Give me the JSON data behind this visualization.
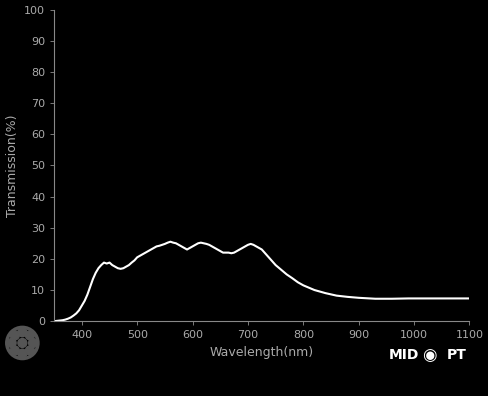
{
  "xlabel": "Wavelength(nm)",
  "ylabel": "Transmission(%)",
  "background_color": "#000000",
  "text_color": "#aaaaaa",
  "line_color": "#ffffff",
  "xlim": [
    350,
    1100
  ],
  "ylim": [
    0,
    100
  ],
  "xticks": [
    400,
    500,
    600,
    700,
    800,
    900,
    1000,
    1100
  ],
  "yticks": [
    0,
    10,
    20,
    30,
    40,
    50,
    60,
    70,
    80,
    90,
    100
  ],
  "wavelengths": [
    350,
    355,
    360,
    365,
    370,
    375,
    380,
    385,
    390,
    395,
    400,
    405,
    410,
    415,
    420,
    425,
    430,
    435,
    440,
    445,
    450,
    455,
    460,
    465,
    470,
    475,
    480,
    485,
    490,
    495,
    500,
    505,
    510,
    515,
    520,
    525,
    530,
    535,
    540,
    545,
    550,
    555,
    560,
    565,
    570,
    575,
    580,
    585,
    590,
    595,
    600,
    605,
    610,
    615,
    620,
    625,
    630,
    635,
    640,
    645,
    650,
    655,
    660,
    665,
    670,
    675,
    680,
    685,
    690,
    695,
    700,
    705,
    710,
    715,
    720,
    725,
    730,
    735,
    740,
    745,
    750,
    760,
    770,
    780,
    790,
    800,
    820,
    840,
    860,
    880,
    900,
    930,
    960,
    990,
    1020,
    1050,
    1070,
    1100
  ],
  "transmission": [
    0,
    0.1,
    0.2,
    0.3,
    0.5,
    0.8,
    1.2,
    1.8,
    2.5,
    3.5,
    5.0,
    6.5,
    8.5,
    11.0,
    13.5,
    15.5,
    17.0,
    18.0,
    18.8,
    18.5,
    18.8,
    18.0,
    17.5,
    17.0,
    16.8,
    17.0,
    17.5,
    18.0,
    18.8,
    19.5,
    20.5,
    21.0,
    21.5,
    22.0,
    22.5,
    23.0,
    23.5,
    24.0,
    24.2,
    24.5,
    24.8,
    25.2,
    25.5,
    25.2,
    25.0,
    24.5,
    24.0,
    23.5,
    23.0,
    23.5,
    24.0,
    24.5,
    25.0,
    25.2,
    25.0,
    24.8,
    24.5,
    24.0,
    23.5,
    23.0,
    22.5,
    22.0,
    22.0,
    22.0,
    21.8,
    22.0,
    22.5,
    23.0,
    23.5,
    24.0,
    24.5,
    24.8,
    24.5,
    24.0,
    23.5,
    23.0,
    22.0,
    21.0,
    20.0,
    19.0,
    18.0,
    16.5,
    15.0,
    13.8,
    12.5,
    11.5,
    10.0,
    9.0,
    8.2,
    7.8,
    7.5,
    7.2,
    7.2,
    7.3,
    7.3,
    7.3,
    7.3,
    7.3
  ],
  "line_width": 1.5,
  "spine_color": "#888888",
  "tick_labelsize": 8,
  "axis_labelsize": 9
}
